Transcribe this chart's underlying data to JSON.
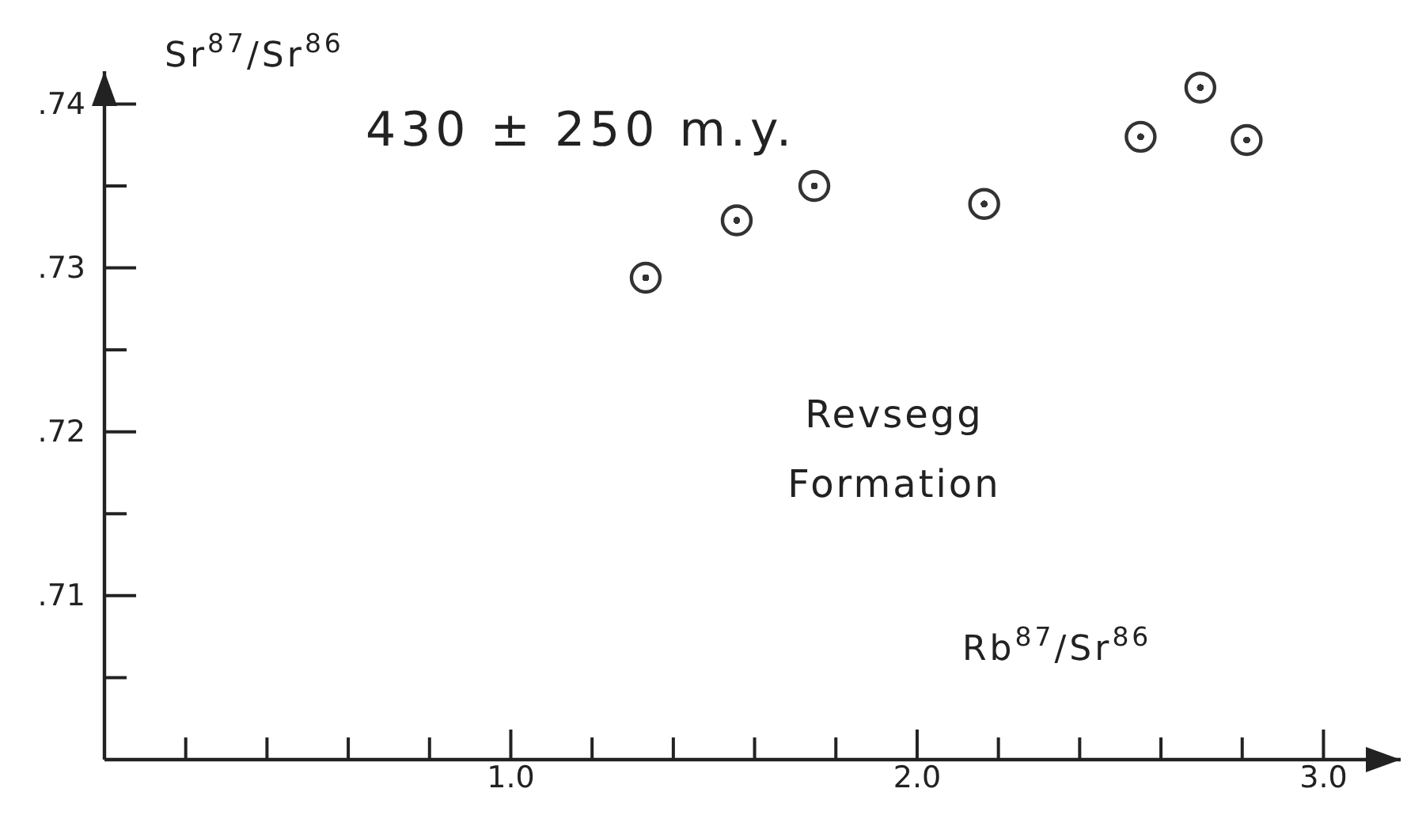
{
  "chart_data": {
    "type": "scatter",
    "xlabel": "Rb$^{87}$/Sr$^{86}$",
    "ylabel": "Sr$^{87}$/Sr$^{86}$",
    "annotations": [
      "430 ± 250 m.y.",
      "Revsegg Formation"
    ],
    "x": [
      1.332,
      1.556,
      1.747,
      2.165,
      2.55,
      2.697,
      2.811
    ],
    "values": [
      0.7294,
      0.7329,
      0.735,
      0.7339,
      0.738,
      0.741,
      0.7378
    ],
    "color": "#333333",
    "marker": "circle",
    "grid": false,
    "xlim": [
      0,
      3.19
    ],
    "ylim": [
      0.7,
      0.742
    ],
    "xticks": [
      {
        "value": 0.2,
        "label": null
      },
      {
        "value": 0.4,
        "label": null
      },
      {
        "value": 0.6,
        "label": null
      },
      {
        "value": 0.8,
        "label": null
      },
      {
        "value": 1.0,
        "label": "1.0"
      },
      {
        "value": 1.2,
        "label": null
      },
      {
        "value": 1.4,
        "label": null
      },
      {
        "value": 1.6,
        "label": null
      },
      {
        "value": 1.8,
        "label": null
      },
      {
        "value": 2.0,
        "label": "2.0"
      },
      {
        "value": 2.2,
        "label": null
      },
      {
        "value": 2.4,
        "label": null
      },
      {
        "value": 2.6,
        "label": null
      },
      {
        "value": 2.8,
        "label": null
      },
      {
        "value": 3.0,
        "label": "3.0"
      }
    ],
    "yticks": [
      {
        "value": 0.705,
        "label": null
      },
      {
        "value": 0.71,
        "label": ".71"
      },
      {
        "value": 0.715,
        "label": null
      },
      {
        "value": 0.72,
        "label": ".72"
      },
      {
        "value": 0.725,
        "label": null
      },
      {
        "value": 0.73,
        "label": ".73"
      },
      {
        "value": 0.735,
        "label": null
      },
      {
        "value": 0.74,
        "label": ".74"
      }
    ]
  }
}
